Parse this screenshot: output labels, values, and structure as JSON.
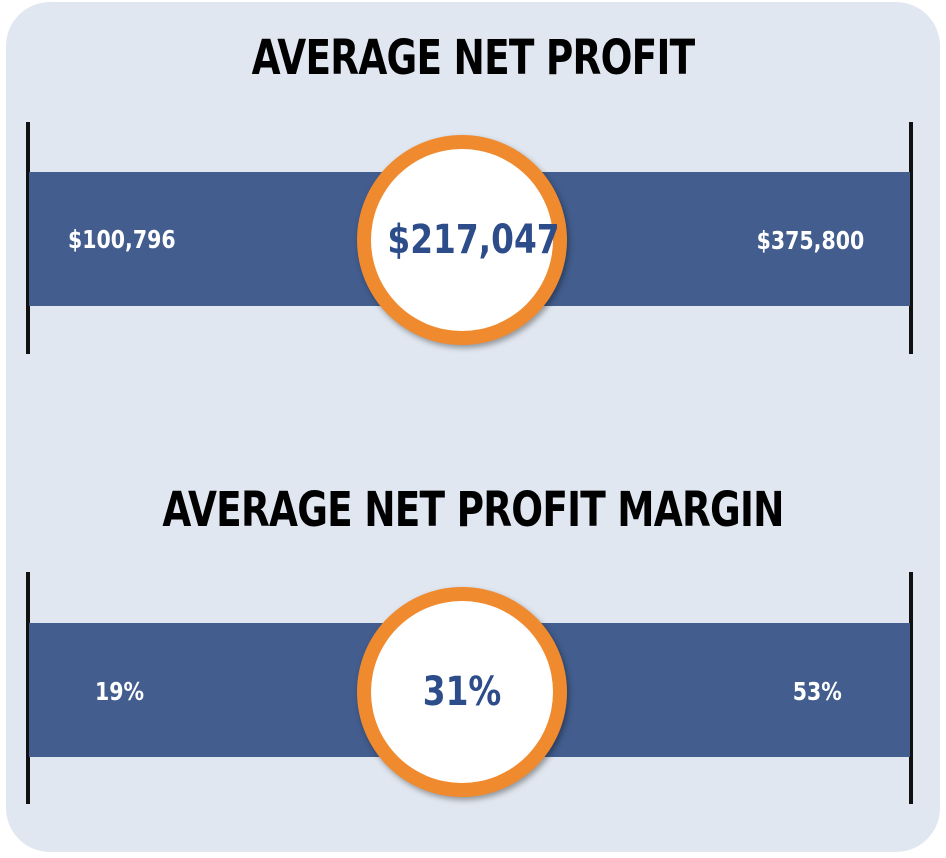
{
  "chart_data": [
    {
      "type": "range",
      "title": "AVERAGE NET PROFIT",
      "min_label": "$100,796",
      "max_label": "$375,800",
      "average_label": "$217,047",
      "min": 100796,
      "max": 375800,
      "average": 217047
    },
    {
      "type": "range",
      "title": "AVERAGE NET PROFIT MARGIN",
      "min_label": "19%",
      "max_label": "53%",
      "average_label": "31%",
      "min": 19,
      "max": 53,
      "average": 31
    }
  ],
  "colors": {
    "background_panel": "#e1e7f0",
    "band": "#425d8e",
    "ring": "#ef8a2e",
    "value_text": "#2d4c8a"
  }
}
